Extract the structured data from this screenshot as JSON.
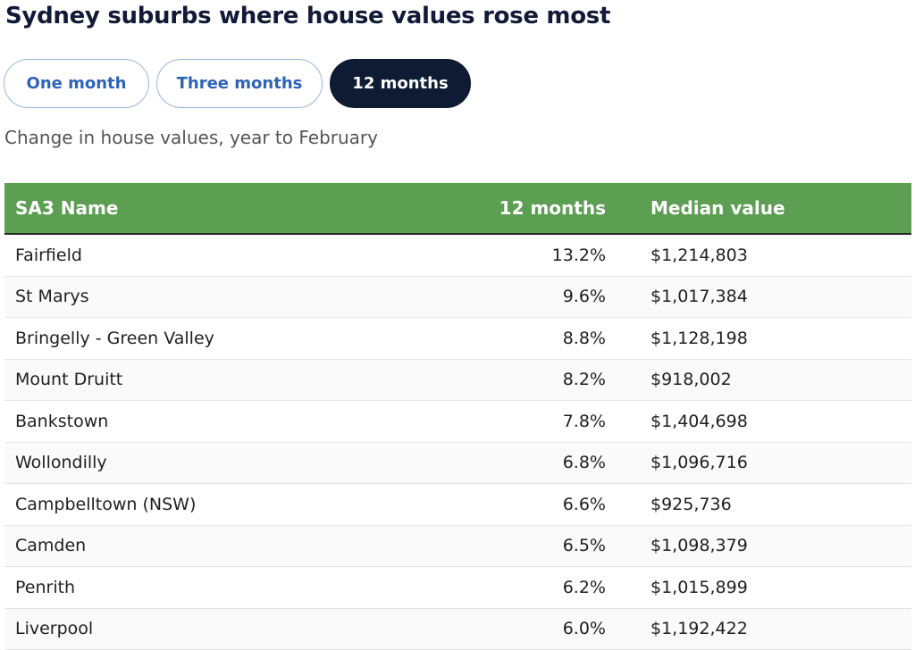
{
  "title": "Sydney suburbs where house values rose most",
  "tabs": [
    {
      "label": "One month",
      "active": false
    },
    {
      "label": "Three months",
      "active": false
    },
    {
      "label": "12 months",
      "active": true
    }
  ],
  "subtitle": "Change in house values, year to February",
  "colors": {
    "header_bg": "#5c9e52",
    "active_tab": "#0f1a33",
    "tab_text": "#2e63b8",
    "title": "#121a37"
  },
  "chart_data": {
    "type": "table",
    "columns": [
      "SA3 Name",
      "12 months",
      "Median value"
    ],
    "rows": [
      [
        "Fairfield",
        "13.2%",
        "$1,214,803"
      ],
      [
        "St Marys",
        "9.6%",
        "$1,017,384"
      ],
      [
        "Bringelly - Green Valley",
        "8.8%",
        "$1,128,198"
      ],
      [
        "Mount Druitt",
        "8.2%",
        "$918,002"
      ],
      [
        "Bankstown",
        "7.8%",
        "$1,404,698"
      ],
      [
        "Wollondilly",
        "6.8%",
        "$1,096,716"
      ],
      [
        "Campbelltown (NSW)",
        "6.6%",
        "$925,736"
      ],
      [
        "Camden",
        "6.5%",
        "$1,098,379"
      ],
      [
        "Penrith",
        "6.2%",
        "$1,015,899"
      ],
      [
        "Liverpool",
        "6.0%",
        "$1,192,422"
      ]
    ]
  }
}
